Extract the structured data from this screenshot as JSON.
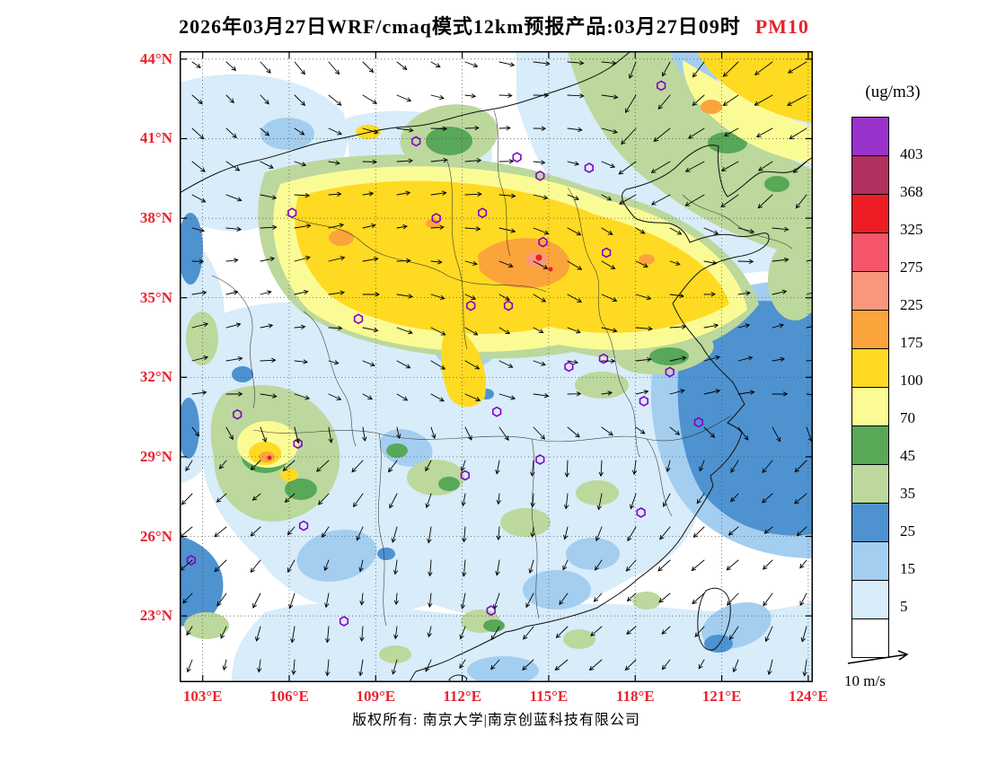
{
  "title": {
    "main": "2026年03月27日WRF/cmaq模式12km预报产品:03月27日09时",
    "pollutant": "PM10"
  },
  "colors": {
    "accent_red": "#E8242E",
    "marker_purple": "#8400C8"
  },
  "axes": {
    "lat_labels": [
      "44°N",
      "41°N",
      "38°N",
      "35°N",
      "32°N",
      "29°N",
      "26°N",
      "23°N"
    ],
    "lat_values": [
      44,
      41,
      38,
      35,
      32,
      29,
      26,
      23
    ],
    "lon_labels": [
      "103°E",
      "106°E",
      "109°E",
      "112°E",
      "115°E",
      "118°E",
      "121°E",
      "124°E"
    ],
    "lon_values": [
      103,
      106,
      109,
      112,
      115,
      118,
      121,
      124
    ],
    "label_color": "#E8242E"
  },
  "legend": {
    "unit": "(ug/m3)",
    "boundaries_top_to_bottom": [
      "403",
      "368",
      "325",
      "275",
      "225",
      "175",
      "100",
      "70",
      "45",
      "35",
      "25",
      "15",
      "5"
    ],
    "cell_colors_top_to_bottom": [
      "#9933CC",
      "#B03060",
      "#EE1C25",
      "#F4556A",
      "#F8977E",
      "#FCA43C",
      "#FFDA22",
      "#FBFB96",
      "#58A858",
      "#BCD89C",
      "#4E92D0",
      "#A4CEF0",
      "#D8ECFA",
      "#FFFFFF"
    ]
  },
  "wind_scale": {
    "label": "10 m/s"
  },
  "footer": {
    "copyright": "版权所有: 南京大学|南京创蓝科技有限公司"
  },
  "map": {
    "station_markers_lonlat": [
      [
        118.9,
        43.0
      ],
      [
        110.4,
        40.9
      ],
      [
        113.9,
        40.3
      ],
      [
        114.7,
        39.6
      ],
      [
        116.4,
        39.9
      ],
      [
        106.1,
        38.2
      ],
      [
        111.1,
        38.0
      ],
      [
        112.7,
        38.2
      ],
      [
        114.8,
        37.1
      ],
      [
        117.0,
        36.7
      ],
      [
        112.3,
        34.7
      ],
      [
        113.6,
        34.7
      ],
      [
        108.4,
        34.2
      ],
      [
        115.7,
        32.4
      ],
      [
        116.9,
        32.7
      ],
      [
        119.2,
        32.2
      ],
      [
        118.3,
        31.1
      ],
      [
        113.2,
        30.7
      ],
      [
        104.2,
        30.6
      ],
      [
        106.3,
        29.5
      ],
      [
        120.2,
        30.3
      ],
      [
        114.7,
        28.9
      ],
      [
        112.1,
        28.3
      ],
      [
        106.5,
        26.4
      ],
      [
        118.2,
        26.9
      ],
      [
        102.6,
        25.1
      ],
      [
        107.9,
        22.8
      ],
      [
        113.0,
        23.2
      ]
    ]
  }
}
